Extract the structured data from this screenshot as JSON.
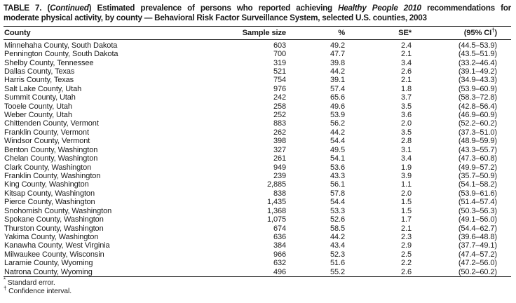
{
  "title": {
    "part1": "TABLE 7. (",
    "continued": "Continued",
    "part2": ") Estimated prevalence of persons who reported achieving ",
    "italic_phrase": "Healthy People 2010",
    "part3": " recommendations for",
    "line2": "moderate physical activity, by county — Behavioral Risk Factor Surveillance System, selected U.S. counties, 2003"
  },
  "columns": {
    "county": "County",
    "sample_size": "Sample size",
    "percent": "%",
    "se": "SE*",
    "ci_prefix": "(95% CI",
    "ci_dagger": "†",
    "ci_suffix": ")"
  },
  "rows": [
    {
      "county": "Minnehaha County, South Dakota",
      "sample_size": "603",
      "percent": "49.2",
      "se": "2.4",
      "ci": "(44.5–53.9)"
    },
    {
      "county": "Pennington County, South Dakota",
      "sample_size": "700",
      "percent": "47.7",
      "se": "2.1",
      "ci": "(43.5–51.9)"
    },
    {
      "county": "Shelby County, Tennessee",
      "sample_size": "319",
      "percent": "39.8",
      "se": "3.4",
      "ci": "(33.2–46.4)"
    },
    {
      "county": "Dallas County, Texas",
      "sample_size": "521",
      "percent": "44.2",
      "se": "2.6",
      "ci": "(39.1–49.2)"
    },
    {
      "county": "Harris County, Texas",
      "sample_size": "754",
      "percent": "39.1",
      "se": "2.1",
      "ci": "(34.9–43.3)"
    },
    {
      "county": "Salt Lake County, Utah",
      "sample_size": "976",
      "percent": "57.4",
      "se": "1.8",
      "ci": "(53.9–60.9)"
    },
    {
      "county": "Summit County, Utah",
      "sample_size": "242",
      "percent": "65.6",
      "se": "3.7",
      "ci": "(58.3–72.8)"
    },
    {
      "county": "Tooele County, Utah",
      "sample_size": "258",
      "percent": "49.6",
      "se": "3.5",
      "ci": "(42.8–56.4)"
    },
    {
      "county": "Weber County, Utah",
      "sample_size": "252",
      "percent": "53.9",
      "se": "3.6",
      "ci": "(46.9–60.9)"
    },
    {
      "county": "Chittenden County, Vermont",
      "sample_size": "883",
      "percent": "56.2",
      "se": "2.0",
      "ci": "(52.2–60.2)"
    },
    {
      "county": "Franklin County, Vermont",
      "sample_size": "262",
      "percent": "44.2",
      "se": "3.5",
      "ci": "(37.3–51.0)"
    },
    {
      "county": "Windsor County, Vermont",
      "sample_size": "398",
      "percent": "54.4",
      "se": "2.8",
      "ci": "(48.9–59.9)"
    },
    {
      "county": "Benton County, Washington",
      "sample_size": "327",
      "percent": "49.5",
      "se": "3.1",
      "ci": "(43.3–55.7)"
    },
    {
      "county": "Chelan County, Washington",
      "sample_size": "261",
      "percent": "54.1",
      "se": "3.4",
      "ci": "(47.3–60.8)"
    },
    {
      "county": "Clark County, Washington",
      "sample_size": "949",
      "percent": "53.6",
      "se": "1.9",
      "ci": "(49.9–57.2)"
    },
    {
      "county": "Franklin County, Washington",
      "sample_size": "239",
      "percent": "43.3",
      "se": "3.9",
      "ci": "(35.7–50.9)"
    },
    {
      "county": "King County, Washington",
      "sample_size": "2,885",
      "percent": "56.1",
      "se": "1.1",
      "ci": "(54.1–58.2)"
    },
    {
      "county": "Kitsap County, Washington",
      "sample_size": "838",
      "percent": "57.8",
      "se": "2.0",
      "ci": "(53.9–61.6)"
    },
    {
      "county": "Pierce County, Washington",
      "sample_size": "1,435",
      "percent": "54.4",
      "se": "1.5",
      "ci": "(51.4–57.4)"
    },
    {
      "county": "Snohomish County, Washington",
      "sample_size": "1,368",
      "percent": "53.3",
      "se": "1.5",
      "ci": "(50.3–56.3)"
    },
    {
      "county": "Spokane County, Washington",
      "sample_size": "1,075",
      "percent": "52.6",
      "se": "1.7",
      "ci": "(49.1–56.0)"
    },
    {
      "county": "Thurston County, Washington",
      "sample_size": "674",
      "percent": "58.5",
      "se": "2.1",
      "ci": "(54.4–62.7)"
    },
    {
      "county": "Yakima County, Washington",
      "sample_size": "636",
      "percent": "44.2",
      "se": "2.3",
      "ci": "(39.6–48.8)"
    },
    {
      "county": "Kanawha County, West Virginia",
      "sample_size": "384",
      "percent": "43.4",
      "se": "2.9",
      "ci": "(37.7–49.1)"
    },
    {
      "county": "Milwaukee County, Wisconsin",
      "sample_size": "966",
      "percent": "52.3",
      "se": "2.5",
      "ci": "(47.4–57.2)"
    },
    {
      "county": "Laramie County, Wyoming",
      "sample_size": "632",
      "percent": "51.6",
      "se": "2.2",
      "ci": "(47.2–56.0)"
    },
    {
      "county": "Natrona County, Wyoming",
      "sample_size": "496",
      "percent": "55.2",
      "se": "2.6",
      "ci": "(50.2–60.2)"
    }
  ],
  "footnotes": [
    {
      "marker": "*",
      "text": " Standard error."
    },
    {
      "marker": "†",
      "text": " Confidence interval."
    }
  ]
}
